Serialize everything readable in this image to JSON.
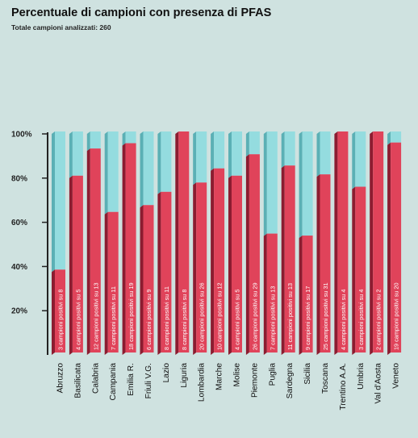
{
  "chart_data": {
    "type": "bar",
    "title": "Percentuale di campioni con presenza di PFAS",
    "subtitle": "Totale campioni analizzati: 260",
    "xlabel": "",
    "ylabel": "",
    "ylim": [
      0,
      100
    ],
    "y_ticks": [
      "20%",
      "40%",
      "60%",
      "80%",
      "100%"
    ],
    "y_tick_values": [
      20,
      40,
      60,
      80,
      100
    ],
    "grid": false,
    "colors": {
      "positive": "#e0435a",
      "positive_side": "#8c1c30",
      "remainder": "#94dcdf",
      "remainder_side": "#5bb0b5",
      "axis": "#222222"
    },
    "categories": [
      "Abruzzo",
      "Basilicata",
      "Calabria",
      "Campania",
      "Emilia R.",
      "Friuli V.G.",
      "Lazio",
      "Liguria",
      "Lombardia",
      "Marche",
      "Molise",
      "Piemonte",
      "Puglia",
      "Sardegna",
      "Sicilia",
      "Toscana",
      "Trentino A.A.",
      "Umbria",
      "Val d'Aosta",
      "Veneto"
    ],
    "values": [
      37.5,
      80,
      92.3,
      63.6,
      94.7,
      66.7,
      72.7,
      100,
      76.9,
      83.3,
      80,
      89.7,
      53.8,
      84.6,
      52.9,
      80.6,
      100,
      75,
      100,
      95
    ],
    "labels": [
      "3 campioni positivi su 8",
      "4 campioni positivi su 5",
      "12 campioni positivi su 13",
      "7 campioni positivi su 11",
      "18 campioni positivi su 19",
      "6 campioni positivi su 9",
      "8 campioni positivi su 11",
      "8 campioni positivi su 8",
      "20 campioni positivi su 26",
      "10 campioni positivi su 12",
      "4 campioni positivi su 5",
      "26 campioni positivi su 29",
      "7 campioni positivi su 13",
      "11 campioni positivi su 13",
      "9 campioni positivi su 17",
      "25 campioni positivi su 31",
      "4 campioni positivi su 4",
      "3 campioni positivi su 4",
      "2 campioni positivi su 2",
      "19 campioni positivi su 20"
    ]
  }
}
